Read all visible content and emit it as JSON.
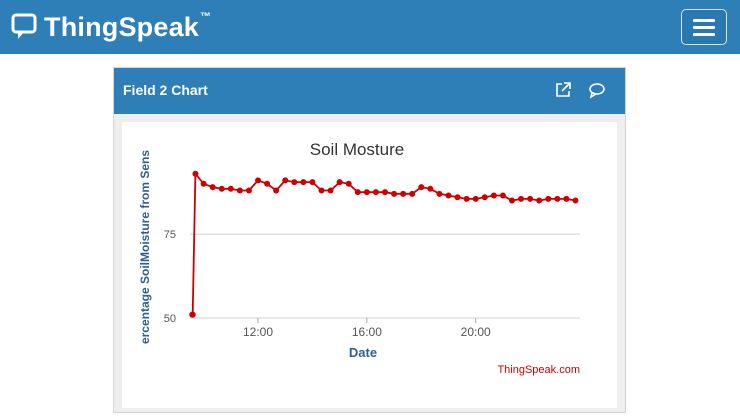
{
  "navbar": {
    "brand_name": "ThingSpeak",
    "brand_tm": "™",
    "menu_icon": "hamburger-menu-icon"
  },
  "panel": {
    "title": "Field 2 Chart",
    "icons": [
      "external-link-icon",
      "comment-icon"
    ]
  },
  "chart_data": {
    "type": "line",
    "title": "Soil Mosture",
    "xlabel": "Date",
    "ylabel": "ercentage SoilMoisture from Sens",
    "credit": "ThingSpeak.com",
    "x_ticks": [
      "12:00",
      "16:00",
      "20:00"
    ],
    "y_ticks": [
      50,
      75
    ],
    "ylim": [
      50,
      95
    ],
    "x_start": "09:30",
    "x_end": "23:50",
    "grid": true,
    "legend": false,
    "color": "#cc0000",
    "series": [
      {
        "x": [
          "09:35",
          "09:36",
          "09:42",
          "10:00",
          "10:20",
          "10:40",
          "11:00",
          "11:20",
          "11:40",
          "12:00",
          "12:20",
          "12:40",
          "13:00",
          "13:20",
          "13:40",
          "14:00",
          "14:20",
          "14:40",
          "15:00",
          "15:20",
          "15:40",
          "16:00",
          "16:20",
          "16:40",
          "17:00",
          "17:20",
          "17:40",
          "18:00",
          "18:20",
          "18:40",
          "19:00",
          "19:20",
          "19:40",
          "20:00",
          "20:20",
          "20:40",
          "21:00",
          "21:20",
          "21:40",
          "22:00",
          "22:20",
          "22:40",
          "23:00",
          "23:20",
          "23:40"
        ],
        "y": [
          51,
          51,
          93,
          90,
          89,
          88.5,
          88.5,
          88,
          88,
          91,
          90,
          88,
          91,
          90.5,
          90.5,
          90.5,
          88,
          88,
          90.5,
          90,
          87.5,
          87.5,
          87.5,
          87.5,
          87,
          87,
          87,
          89,
          88.5,
          87,
          86.5,
          86,
          85.5,
          85.5,
          86,
          86.5,
          86.5,
          85,
          85.5,
          85.5,
          85,
          85.5,
          85.5,
          85.5,
          85
        ]
      }
    ]
  }
}
